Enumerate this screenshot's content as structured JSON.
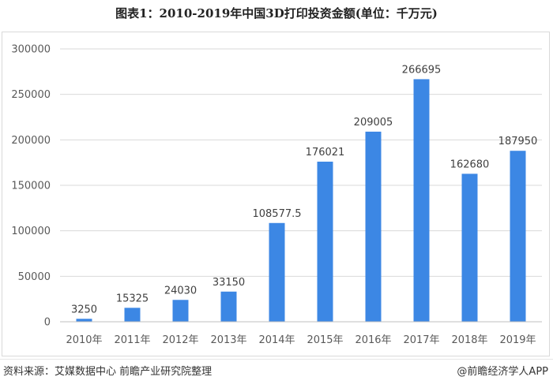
{
  "title": "图表1：2010-2019年中国3D打印投资金额(单位：千万元)",
  "footer": {
    "source": "资料来源：艾媒数据中心 前瞻产业研究院整理",
    "brand": "@前瞻经济学人APP"
  },
  "chart_data": {
    "type": "bar",
    "categories": [
      "2010年",
      "2011年",
      "2012年",
      "2013年",
      "2014年",
      "2015年",
      "2016年",
      "2017年",
      "2018年",
      "2019年"
    ],
    "values": [
      3250,
      15325,
      24030,
      33150,
      108577.5,
      176021,
      209005,
      266695,
      162680,
      187950
    ],
    "value_labels": [
      "3250",
      "15325",
      "24030",
      "33150",
      "108577.5",
      "176021",
      "209005",
      "266695",
      "162680",
      "187950"
    ],
    "ylim": [
      0,
      300000
    ],
    "yticks": [
      0,
      50000,
      100000,
      150000,
      200000,
      250000,
      300000
    ],
    "ytick_labels": [
      "0",
      "50000",
      "100000",
      "150000",
      "200000",
      "250000",
      "300000"
    ],
    "grid": true,
    "legend": "none",
    "bar_color": "#3c87e4"
  }
}
